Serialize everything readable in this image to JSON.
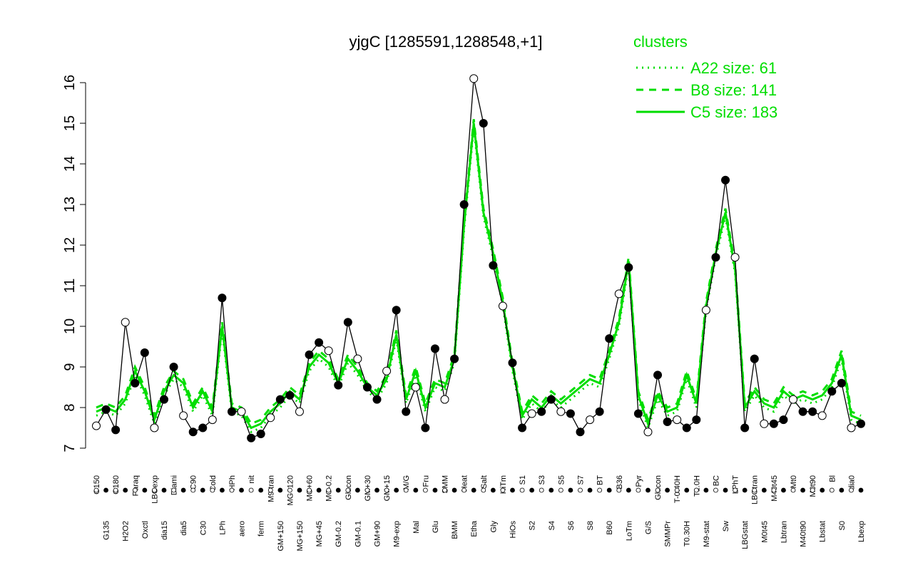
{
  "chart_data": {
    "type": "line",
    "title": "yjgC [1285591,1288548,+1]",
    "legend_title": "clusters",
    "legend_color": "#00dd00",
    "color": "#000000",
    "categories": [
      "G150",
      "G135",
      "G180",
      "H2O2",
      "Paraq",
      "Oxctl",
      "LBGexp",
      "dia15",
      "Diami",
      "dia5",
      "C90",
      "C30",
      "Cold",
      "LPh",
      "HPh",
      "aero",
      "nit",
      "ferm",
      "M9-tran",
      "GM+150",
      "MG+120",
      "MG+150",
      "MG+60",
      "MG+45",
      "MG-0.2",
      "GM-0.2",
      "Glucon",
      "GM-0.1",
      "GM+30",
      "GM+90",
      "GM+15",
      "M9-exp",
      "M/G",
      "Mal",
      "Fru",
      "Glu",
      "SMM",
      "BMM",
      "Heat",
      "Etha",
      "Salt",
      "Gly",
      "HiTm",
      "HiOs",
      "S1",
      "S2",
      "S3",
      "S4",
      "S5",
      "S6",
      "S7",
      "S8",
      "BT",
      "B60",
      "B36",
      "LoTm",
      "Pyr",
      "G/S",
      "Glucon",
      "SMMPr",
      "T-0.40H",
      "T0.30H",
      "T1.0H",
      "M9-stat",
      "BC",
      "Sw",
      "LPhT",
      "LBGstat",
      "LBGtran",
      "M0t45",
      "M40t45",
      "Lbtran",
      "Mt0",
      "M40t90",
      "M0t90",
      "Lbstat",
      "Bl",
      "S0",
      "dia0",
      "Lbexp"
    ],
    "values": [
      7.55,
      7.95,
      7.45,
      10.1,
      8.6,
      9.35,
      7.5,
      8.2,
      9.0,
      7.8,
      7.4,
      7.5,
      7.7,
      10.7,
      7.9,
      7.9,
      7.25,
      7.35,
      7.75,
      8.2,
      8.3,
      7.9,
      9.3,
      9.6,
      9.4,
      8.55,
      10.1,
      9.2,
      8.5,
      8.2,
      8.9,
      10.4,
      7.9,
      8.5,
      7.5,
      9.45,
      8.2,
      9.2,
      13.0,
      16.1,
      15.0,
      11.5,
      10.5,
      9.1,
      7.5,
      7.85,
      7.9,
      8.2,
      7.9,
      7.85,
      7.4,
      7.7,
      7.9,
      9.7,
      10.8,
      11.45,
      7.85,
      7.4,
      8.8,
      7.65,
      7.7,
      7.5,
      7.7,
      10.4,
      11.7,
      13.6,
      11.7,
      7.5,
      9.2,
      7.6,
      7.6,
      7.7,
      8.2,
      7.9,
      7.9,
      7.8,
      8.4,
      8.6,
      7.5,
      7.6
    ],
    "series": [
      {
        "name": "A22 size: 61",
        "color": "#00dd00",
        "style": "dotted",
        "values": [
          7.8,
          7.9,
          7.8,
          8.1,
          8.8,
          8.3,
          7.6,
          8.3,
          8.7,
          8.5,
          7.9,
          8.3,
          7.8,
          9.9,
          7.9,
          7.8,
          7.4,
          7.5,
          7.8,
          8.0,
          8.3,
          8.1,
          8.9,
          9.2,
          9.0,
          8.5,
          9.1,
          8.8,
          8.4,
          8.2,
          8.6,
          9.7,
          8.1,
          8.8,
          7.9,
          8.5,
          8.4,
          9.1,
          12.4,
          14.9,
          12.7,
          11.7,
          10.5,
          8.9,
          7.7,
          8.1,
          7.9,
          8.2,
          8.0,
          8.2,
          8.4,
          8.6,
          8.5,
          9.2,
          10.0,
          11.5,
          8.2,
          7.5,
          8.2,
          7.8,
          7.9,
          8.7,
          8.0,
          10.4,
          11.7,
          12.7,
          11.3,
          7.9,
          8.3,
          8.0,
          7.9,
          8.3,
          8.1,
          8.2,
          8.1,
          8.2,
          8.5,
          9.2,
          7.7,
          7.6
        ]
      },
      {
        "name": "B8 size: 141",
        "color": "#00dd00",
        "style": "dashed",
        "values": [
          8.0,
          8.1,
          8.0,
          8.3,
          9.0,
          8.5,
          7.8,
          8.5,
          8.9,
          8.7,
          8.1,
          8.5,
          8.0,
          10.1,
          8.1,
          8.0,
          7.6,
          7.7,
          8.0,
          8.2,
          8.5,
          8.3,
          9.1,
          9.4,
          9.2,
          8.7,
          9.3,
          9.0,
          8.6,
          8.4,
          8.8,
          9.9,
          8.3,
          9.0,
          8.1,
          8.7,
          8.6,
          9.3,
          12.6,
          15.1,
          12.9,
          11.9,
          10.7,
          9.1,
          7.9,
          8.3,
          8.1,
          8.4,
          8.2,
          8.4,
          8.6,
          8.8,
          8.7,
          9.4,
          10.2,
          11.7,
          8.4,
          7.7,
          8.4,
          8.0,
          8.1,
          8.9,
          8.2,
          10.6,
          11.9,
          12.9,
          11.5,
          8.1,
          8.5,
          8.2,
          8.1,
          8.5,
          8.3,
          8.4,
          8.3,
          8.4,
          8.7,
          9.4,
          7.9,
          7.8
        ]
      },
      {
        "name": "C5 size: 183",
        "color": "#00dd00",
        "style": "solid",
        "values": [
          7.9,
          8.0,
          7.9,
          8.2,
          8.9,
          8.4,
          7.7,
          8.4,
          8.8,
          8.6,
          8.0,
          8.4,
          7.9,
          10.0,
          8.0,
          7.9,
          7.5,
          7.6,
          7.9,
          8.1,
          8.4,
          8.2,
          9.0,
          9.3,
          9.1,
          8.6,
          9.2,
          8.9,
          8.5,
          8.3,
          8.7,
          9.8,
          8.2,
          8.9,
          8.0,
          8.6,
          8.5,
          9.2,
          12.5,
          15.0,
          12.8,
          11.8,
          10.6,
          9.0,
          7.8,
          8.2,
          8.0,
          8.3,
          8.1,
          8.3,
          8.5,
          8.7,
          8.6,
          9.3,
          10.1,
          11.6,
          8.3,
          7.6,
          8.3,
          7.9,
          8.0,
          8.8,
          8.1,
          10.5,
          11.8,
          12.8,
          11.4,
          8.0,
          8.4,
          8.1,
          8.0,
          8.4,
          8.2,
          8.3,
          8.2,
          8.3,
          8.6,
          9.3,
          7.8,
          7.7
        ]
      }
    ],
    "ylim": [
      7,
      16
    ],
    "yticks": [
      7,
      8,
      9,
      10,
      11,
      12,
      13,
      14,
      15,
      16
    ]
  }
}
